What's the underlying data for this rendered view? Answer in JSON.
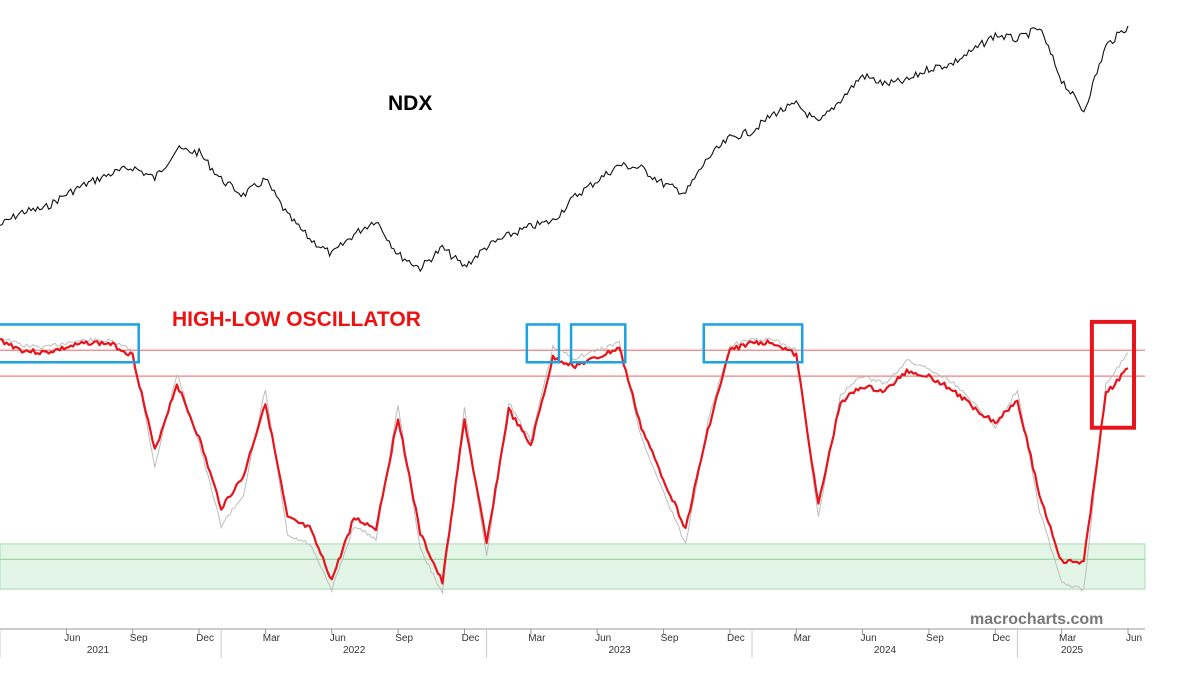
{
  "chart_data": {
    "type": "line",
    "title": "",
    "x_range": [
      "2021-03",
      "2025-06"
    ],
    "panels": [
      {
        "name": "NDX",
        "label": "NDX",
        "series_color": "#111111",
        "x": [
          "2021-03",
          "2021-04",
          "2021-05",
          "2021-06",
          "2021-07",
          "2021-08",
          "2021-09",
          "2021-10",
          "2021-11",
          "2021-12",
          "2022-01",
          "2022-02",
          "2022-03",
          "2022-04",
          "2022-05",
          "2022-06",
          "2022-07",
          "2022-08",
          "2022-09",
          "2022-10",
          "2022-11",
          "2022-12",
          "2023-01",
          "2023-02",
          "2023-03",
          "2023-04",
          "2023-05",
          "2023-06",
          "2023-07",
          "2023-08",
          "2023-09",
          "2023-10",
          "2023-11",
          "2023-12",
          "2024-01",
          "2024-02",
          "2024-03",
          "2024-04",
          "2024-05",
          "2024-06",
          "2024-07",
          "2024-08",
          "2024-09",
          "2024-10",
          "2024-11",
          "2024-12",
          "2025-01",
          "2025-02",
          "2025-03",
          "2025-04",
          "2025-05",
          "2025-06"
        ],
        "values": [
          12900,
          13500,
          13650,
          14300,
          14800,
          15200,
          15500,
          15000,
          16300,
          16150,
          14950,
          14250,
          14950,
          13350,
          12300,
          11600,
          12500,
          13150,
          11600,
          11000,
          11900,
          11050,
          11950,
          12450,
          12850,
          13100,
          14200,
          14900,
          15600,
          15450,
          14750,
          14350,
          15900,
          16800,
          17100,
          17900,
          18300,
          17450,
          18500,
          19600,
          19200,
          19350,
          19900,
          20100,
          20700,
          21400,
          21200,
          21700,
          19400,
          18000,
          20900,
          21800
        ]
      },
      {
        "name": "HIGH-LOW OSCILLATOR",
        "label": "HIGH-LOW OSCILLATOR",
        "series_color": "#e8141c",
        "secondary_color": "#bdbdbd",
        "upper_threshold_color": "#f08080",
        "lower_zone_color": "#e3f5e6",
        "x": [
          "2021-03",
          "2021-04",
          "2021-05",
          "2021-06",
          "2021-07",
          "2021-08",
          "2021-09",
          "2021-10",
          "2021-11",
          "2021-12",
          "2022-01",
          "2022-02",
          "2022-03",
          "2022-04",
          "2022-05",
          "2022-06",
          "2022-07",
          "2022-08",
          "2022-09",
          "2022-10",
          "2022-11",
          "2022-12",
          "2023-01",
          "2023-02",
          "2023-03",
          "2023-04",
          "2023-05",
          "2023-06",
          "2023-07",
          "2023-08",
          "2023-09",
          "2023-10",
          "2023-11",
          "2023-12",
          "2024-01",
          "2024-02",
          "2024-03",
          "2024-04",
          "2024-05",
          "2024-06",
          "2024-07",
          "2024-08",
          "2024-09",
          "2024-10",
          "2024-11",
          "2024-12",
          "2025-01",
          "2025-02",
          "2025-03",
          "2025-04",
          "2025-05",
          "2025-06"
        ],
        "values": [
          98,
          90,
          88,
          92,
          96,
          95,
          86,
          12,
          64,
          22,
          -32,
          -8,
          50,
          -40,
          -48,
          -88,
          -40,
          -48,
          38,
          -52,
          -90,
          36,
          -60,
          44,
          16,
          84,
          78,
          84,
          92,
          30,
          -10,
          -48,
          28,
          90,
          96,
          96,
          86,
          -30,
          50,
          62,
          58,
          74,
          70,
          60,
          46,
          34,
          52,
          -22,
          -74,
          -74,
          56,
          76
        ],
        "secondary_values": [
          100,
          94,
          92,
          96,
          98,
          97,
          90,
          0,
          72,
          18,
          -46,
          -22,
          60,
          -54,
          -60,
          -96,
          -46,
          -56,
          48,
          -64,
          -98,
          46,
          -70,
          50,
          20,
          92,
          84,
          90,
          96,
          22,
          -20,
          -60,
          34,
          94,
          98,
          98,
          90,
          -40,
          56,
          70,
          64,
          82,
          76,
          66,
          50,
          30,
          60,
          -34,
          -90,
          -96,
          64,
          88
        ],
        "upper_thresholds": [
          70,
          90
        ],
        "lower_zone": [
          -95,
          -60
        ],
        "lower_line": -72,
        "ylim": [
          -105,
          115
        ]
      }
    ],
    "x_ticks_months": [
      "Jun",
      "Sep",
      "Dec",
      "Mar",
      "Jun",
      "Sep",
      "Dec",
      "Mar",
      "Jun",
      "Sep",
      "Dec",
      "Mar",
      "Jun",
      "Sep",
      "Dec",
      "Mar",
      "Jun"
    ],
    "x_ticks_years": [
      "2021",
      "2022",
      "2023",
      "2024",
      "2025"
    ],
    "annotations": {
      "watermark": "macrocharts.com",
      "blue_box_ranges": [
        [
          "2021-03",
          "2021-09"
        ],
        [
          "2023-03",
          "2023-04"
        ],
        [
          "2023-05",
          "2023-07"
        ],
        [
          "2023-11",
          "2024-03"
        ]
      ],
      "red_box_range": [
        "2025-05",
        "2025-06"
      ],
      "blue_box_color": "#1aa3e0",
      "red_box_color": "#e8141c"
    }
  }
}
